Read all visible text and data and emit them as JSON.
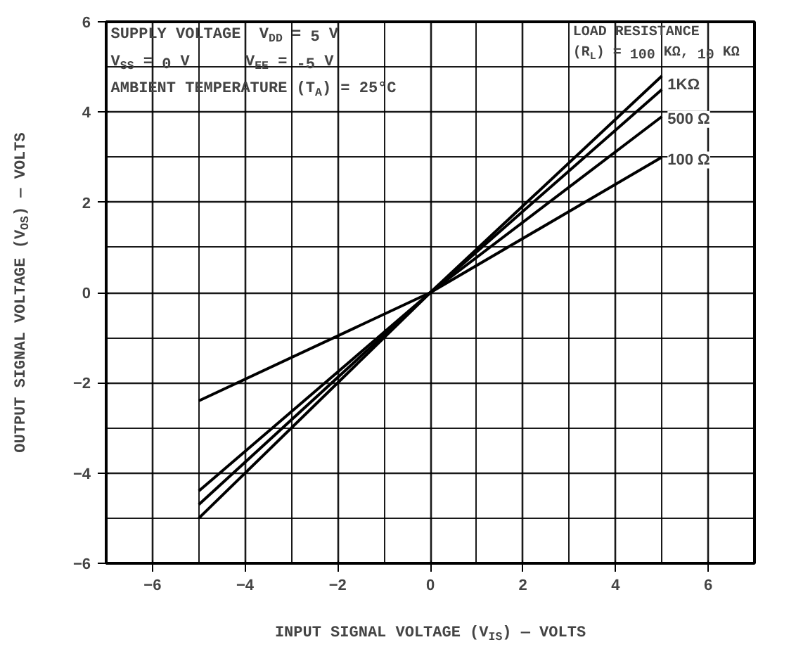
{
  "chart_data": {
    "type": "line",
    "xlabel": "INPUT SIGNAL VOLTAGE (V$_{IS}$) — VOLTS",
    "ylabel": "OUTPUT SIGNAL VOLTAGE (V$_{OS}$) — VOLTS",
    "x": [
      -5,
      0,
      5
    ],
    "series": [
      {
        "color": "#000000",
        "values": [
          -5.0,
          0,
          4.8
        ]
      },
      {
        "name": "1KΩ",
        "color": "#000000",
        "values": [
          -4.7,
          0,
          4.5
        ]
      },
      {
        "name": "500 Ω",
        "color": "#000000",
        "values": [
          -4.4,
          0,
          3.9
        ]
      },
      {
        "name": "100 Ω",
        "color": "#000000",
        "values": [
          -2.4,
          0,
          3.0
        ]
      }
    ],
    "xlim": [
      -7,
      7
    ],
    "ylim": [
      -6,
      6
    ],
    "xticks": [
      -6,
      -4,
      -2,
      0,
      2,
      4,
      6
    ],
    "yticks": [
      -6,
      -4,
      -2,
      0,
      2,
      4,
      6
    ],
    "grid": true,
    "legend": false,
    "marker": "none",
    "line_style": "solid",
    "annotations": [
      "SUPPLY VOLTAGE  V$_{DD}$ = 5 V",
      "V$_{SS}$ = 0 V      V$_{EE}$ = -5 V",
      "AMBIENT TEMPERATURE (T$_{A}$) = 25°C",
      "LOAD RESISTANCE",
      "(R$_{L}$) = 100 KΩ, 10 KΩ"
    ]
  }
}
